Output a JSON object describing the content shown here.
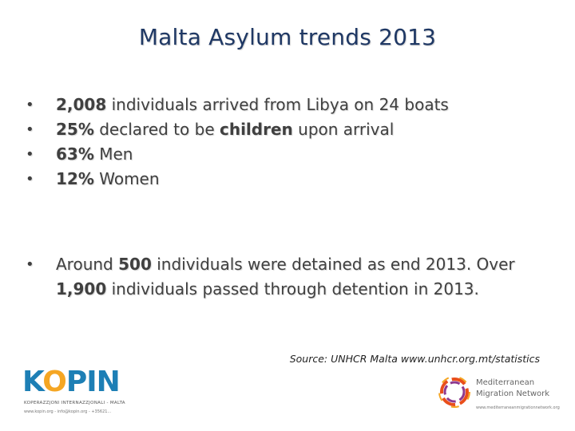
{
  "slide": {
    "title": "Malta Asylum trends 2013",
    "bullets_group1": [
      {
        "bold": "2,008",
        "rest": " individuals arrived from Libya on 24 boats"
      },
      {
        "bold": "25%",
        "mid": " declared to be ",
        "bold2": "children",
        "rest": " upon arrival"
      },
      {
        "bold": "63%",
        "rest": " Men"
      },
      {
        "bold": "12%",
        "rest": " Women"
      }
    ],
    "bullets_group2": [
      {
        "pre": "Around ",
        "bold": "500",
        "mid": " individuals were detained as end 2013. Over ",
        "bold2": "1,900",
        "rest": " individuals passed through detention in 2013."
      }
    ],
    "bullet_symbol": "•",
    "source": "Source: UNHCR Malta www.unhcr.org.mt/statistics"
  },
  "logos": {
    "kopin": {
      "word_k": "K",
      "word_o": "O",
      "word_rest": "PIN",
      "subtitle": "KOPERAZZJONI INTERNAZZJONALI - MALTA",
      "contact": "www.kopin.org - info@kopin.org - +35621..."
    },
    "mmn": {
      "line1": "Mediterranean",
      "line2": "Migration Network",
      "url": "www.mediterraneanmigrationnetwork.org"
    }
  },
  "colors": {
    "title": "#1f3864",
    "body_text": "#404040",
    "kopin_blue": "#1d7fb5",
    "kopin_orange": "#f5a623"
  }
}
